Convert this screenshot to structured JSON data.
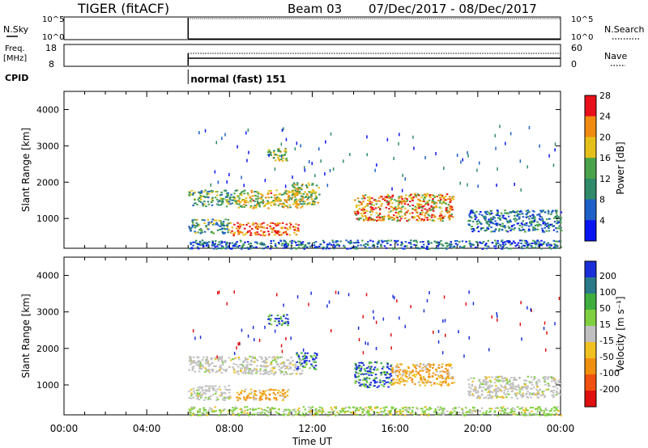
{
  "header": {
    "radar": "TIGER (fitACF)",
    "beam": "Beam 03",
    "date_range": "07/Dec/2017 - 08/Dec/2017"
  },
  "top_panels": {
    "nsky_label": "N.Sky",
    "nsky_ticks": [
      "10^5",
      "10^0"
    ],
    "nsearch_label": "N.Search",
    "nsearch_ticks": [
      "10^5",
      "10^0"
    ],
    "freq_label": "Freq.",
    "freq_unit": "[MHz]",
    "freq_ticks": [
      "18",
      "8"
    ],
    "nave_label": "Nave",
    "nave_ticks": [
      "60",
      "0"
    ],
    "cpid_label": "CPID",
    "cpid_text": "normal (fast) 151",
    "data_start_hour": 6
  },
  "chart_data": [
    {
      "type": "heatmap",
      "name": "power",
      "xlabel": "",
      "ylabel": "Slant Range [km]",
      "x_range_hours": [
        0,
        24
      ],
      "y_range_km": [
        180,
        4500
      ],
      "y_ticks": [
        1000,
        2000,
        3000,
        4000
      ],
      "colorbar": {
        "label": "Power [dB]",
        "ticks": [
          "4",
          "8",
          "12",
          "16",
          "20",
          "24",
          "28"
        ],
        "colors": [
          "#0a14f0",
          "#1f5fc8",
          "#2f8a6a",
          "#4aa34a",
          "#e6c01a",
          "#f08a10",
          "#e8101a"
        ]
      },
      "echo_regions": [
        {
          "t0": 6.0,
          "t1": 8.3,
          "r0": 1350,
          "r1": 1800,
          "level": 0.45
        },
        {
          "t0": 8.3,
          "t1": 11.5,
          "r0": 1300,
          "r1": 1800,
          "level": 0.62
        },
        {
          "t0": 6.0,
          "t1": 8.0,
          "r0": 600,
          "r1": 1000,
          "level": 0.4
        },
        {
          "t0": 8.0,
          "t1": 11.3,
          "r0": 550,
          "r1": 900,
          "level": 0.85
        },
        {
          "t0": 9.8,
          "t1": 10.8,
          "r0": 2600,
          "r1": 2950,
          "level": 0.55
        },
        {
          "t0": 11.0,
          "t1": 12.3,
          "r0": 1400,
          "r1": 2000,
          "level": 0.55
        },
        {
          "t0": 14.0,
          "t1": 18.8,
          "r0": 950,
          "r1": 1700,
          "level": 0.72
        },
        {
          "t0": 19.5,
          "t1": 24.0,
          "r0": 650,
          "r1": 1250,
          "level": 0.3
        },
        {
          "t0": 6.0,
          "t1": 24.0,
          "r0": 180,
          "r1": 420,
          "level": 0.25
        }
      ]
    },
    {
      "type": "heatmap",
      "name": "velocity",
      "xlabel": "Time UT",
      "ylabel": "Slant Range [km]",
      "x_range_hours": [
        0,
        24
      ],
      "x_ticks": [
        "00:00",
        "04:00",
        "08:00",
        "12:00",
        "16:00",
        "20:00",
        "00:00"
      ],
      "y_range_km": [
        180,
        4500
      ],
      "y_ticks": [
        1000,
        2000,
        3000,
        4000
      ],
      "colorbar": {
        "label": "Velocity [m s⁻¹]",
        "ticks": [
          "200",
          "100",
          "50",
          "15",
          "-15",
          "-50",
          "-100",
          "-200"
        ],
        "colors": [
          "#1a2fd8",
          "#2a7a8a",
          "#3fae3f",
          "#7fd040",
          "#c0c0c0",
          "#f0c020",
          "#f09010",
          "#f05010",
          "#e01010"
        ]
      },
      "echo_regions": [
        {
          "t0": 6.0,
          "t1": 8.3,
          "r0": 1350,
          "r1": 1800,
          "vel": "gray"
        },
        {
          "t0": 8.3,
          "t1": 11.5,
          "r0": 1300,
          "r1": 1800,
          "vel": "gray"
        },
        {
          "t0": 6.0,
          "t1": 8.0,
          "r0": 600,
          "r1": 1000,
          "vel": "gray"
        },
        {
          "t0": 8.3,
          "t1": 10.8,
          "r0": 600,
          "r1": 900,
          "vel": "orange"
        },
        {
          "t0": 9.8,
          "t1": 10.8,
          "r0": 2650,
          "r1": 2950,
          "vel": "blue"
        },
        {
          "t0": 11.2,
          "t1": 12.2,
          "r0": 1450,
          "r1": 1900,
          "vel": "blue"
        },
        {
          "t0": 14.0,
          "t1": 15.8,
          "r0": 950,
          "r1": 1650,
          "vel": "blue"
        },
        {
          "t0": 15.8,
          "t1": 18.8,
          "r0": 1000,
          "r1": 1600,
          "vel": "orange"
        },
        {
          "t0": 19.5,
          "t1": 24.0,
          "r0": 650,
          "r1": 1250,
          "vel": "gray"
        },
        {
          "t0": 6.0,
          "t1": 24.0,
          "r0": 180,
          "r1": 420,
          "vel": "green"
        }
      ]
    }
  ]
}
